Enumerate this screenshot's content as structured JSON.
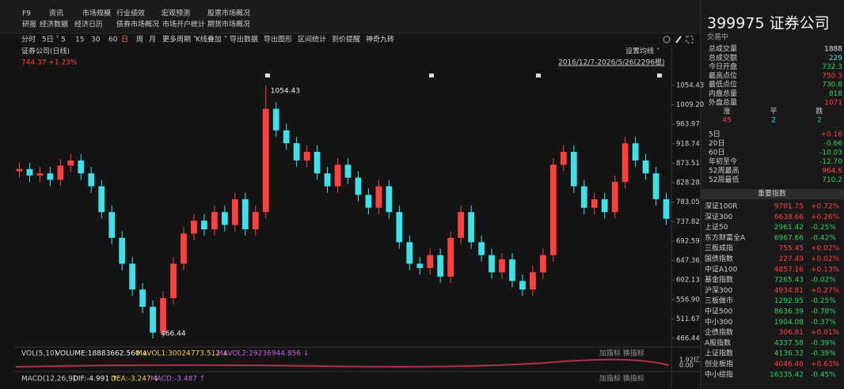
{
  "menu": {
    "row1": [
      "F9",
      "资讯",
      "市场规模",
      "行业绩效",
      "宏观预测",
      "股票市场概况"
    ],
    "row2": [
      "研报",
      "经济数据",
      "经济日历",
      "债券市场概况",
      "市场开户统计",
      "期货市场概况"
    ],
    "toolbar": [
      "分时",
      "5日 ˅",
      "5",
      "15",
      "30",
      "60",
      "日",
      "周",
      "月",
      "更多周期 ˅",
      "K线叠加 ˅",
      "导出数据",
      "导出图形",
      "区间统计",
      "到价提醒",
      "神奇九砖"
    ]
  },
  "chart_data": {
    "type": "candlestick",
    "title": "证券公司(日线)",
    "last": "744.37 +1.23%",
    "ma_button": "设置均线 ˅",
    "range": "2016/12/7-2026/5/26(2296根)",
    "up_color": "#ff4040",
    "down_color": "#40e0e8",
    "open": [
      855,
      860,
      845,
      850,
      835,
      868,
      880,
      850,
      820,
      760,
      700,
      640,
      580,
      540,
      480,
      560,
      640,
      710,
      740,
      720,
      760,
      730,
      790,
      720,
      760,
      1000,
      950,
      920,
      880,
      900,
      850,
      820,
      870,
      840,
      800,
      770,
      820,
      760,
      690,
      640,
      630,
      660,
      610,
      700,
      760,
      690,
      660,
      620,
      650,
      600,
      580,
      620,
      660,
      870,
      900,
      820,
      770,
      790,
      760,
      830,
      920,
      880,
      850,
      790
    ],
    "high": [
      875,
      875,
      865,
      865,
      883,
      895,
      895,
      865,
      835,
      775,
      715,
      655,
      595,
      555,
      575,
      655,
      725,
      755,
      755,
      775,
      775,
      805,
      805,
      775,
      1054.43,
      1015,
      965,
      935,
      915,
      915,
      865,
      885,
      885,
      855,
      815,
      835,
      835,
      775,
      705,
      655,
      675,
      675,
      715,
      775,
      775,
      705,
      675,
      665,
      665,
      615,
      635,
      675,
      885,
      915,
      915,
      835,
      805,
      805,
      845,
      935,
      935,
      895,
      865,
      805
    ],
    "low": [
      840,
      830,
      830,
      820,
      820,
      853,
      835,
      805,
      745,
      685,
      625,
      565,
      525,
      466.44,
      470,
      545,
      625,
      695,
      705,
      705,
      715,
      715,
      705,
      705,
      745,
      935,
      905,
      865,
      865,
      835,
      805,
      805,
      825,
      785,
      755,
      755,
      745,
      675,
      625,
      615,
      615,
      595,
      595,
      685,
      675,
      645,
      605,
      605,
      585,
      565,
      565,
      605,
      645,
      855,
      805,
      755,
      755,
      745,
      745,
      815,
      865,
      835,
      775,
      730
    ],
    "close": [
      860,
      845,
      850,
      835,
      868,
      880,
      850,
      820,
      760,
      700,
      640,
      580,
      540,
      480,
      560,
      640,
      710,
      740,
      720,
      760,
      730,
      790,
      720,
      760,
      1000,
      950,
      920,
      880,
      900,
      850,
      820,
      870,
      840,
      800,
      770,
      820,
      760,
      690,
      640,
      630,
      660,
      610,
      700,
      760,
      690,
      660,
      620,
      650,
      600,
      580,
      620,
      660,
      870,
      900,
      820,
      770,
      790,
      760,
      830,
      920,
      880,
      850,
      790,
      744.37
    ],
    "max_label": 1054.43,
    "min_label": 466.44,
    "ylim": [
      466.44,
      1054.43
    ],
    "yticks": [
      1054.43,
      {
        "value": 1009.2,
        "label": "1009.20"
      },
      963.97,
      918.74,
      873.51,
      828.28,
      783.05,
      737.82,
      692.59,
      647.36,
      602.13,
      {
        "value": 556.9,
        "label": "556.90"
      },
      511.67,
      466.44
    ]
  },
  "volume": {
    "title": "VOL(5,10)",
    "volume": "VOLUME:18883662.560 ↓",
    "mavol1": "MAVOL1:30024773.512 ↓",
    "mavol2": "MAVOL2:29236944.856 ↓",
    "buttons": "加指标 换指标",
    "axis_top": "1.92亿",
    "axis_bottom": "0.00"
  },
  "macd": {
    "title": "MACD(12,26,9)",
    "dif": "DIF:-4.991 ↑",
    "dea": "DEA:-3.247 ↓",
    "macd": "MACD:-3.487 ↑",
    "buttons": "加指标 换指标"
  },
  "quote": {
    "name": "399975 证券公司",
    "status": "交易中",
    "stats": [
      {
        "label": "总成交量",
        "value": "1888",
        "color": "#e0e0e0"
      },
      {
        "label": "总成交额",
        "value": "229",
        "color": "#40e0e8"
      },
      {
        "label": "今日开盘",
        "value": "732.3",
        "color": "#30d060"
      },
      {
        "label": "最高点位",
        "value": "750.3",
        "color": "#ff4040"
      },
      {
        "label": "最低点位",
        "value": "730.8",
        "color": "#30d060"
      },
      {
        "label": "内盘总量",
        "value": "818",
        "color": "#30d060"
      },
      {
        "label": "外盘总量",
        "value": "1071",
        "color": "#ff4040"
      }
    ],
    "breadth": {
      "headers": [
        "涨",
        "平",
        "跌"
      ],
      "values": [
        "45",
        "2",
        "2"
      ],
      "colors": [
        "#ff4040",
        "#40e0e8",
        "#30d060"
      ]
    },
    "returns": [
      {
        "label": "5日",
        "value": "+0.16",
        "color": "#ff4040"
      },
      {
        "label": "20日",
        "value": "-0.66",
        "color": "#30d060"
      },
      {
        "label": "60日",
        "value": "-10.03",
        "color": "#30d060"
      },
      {
        "label": "年初至今",
        "value": "-12.70",
        "color": "#30d060"
      },
      {
        "label": "52周最高",
        "value": "964.6",
        "color": "#ff4040"
      },
      {
        "label": "52周最低",
        "value": "710.2",
        "color": "#30d060"
      }
    ],
    "indices_title": "重要指数",
    "indices": [
      {
        "name": "深证100R",
        "value": "9701.75",
        "change": "+0.72%"
      },
      {
        "name": "深证300",
        "value": "6638.66",
        "change": "+0.26%"
      },
      {
        "name": "上证50",
        "value": "2961.42",
        "change": "-0.25%"
      },
      {
        "name": "东方财富全A",
        "value": "6967.66",
        "change": "-0.42%"
      },
      {
        "name": "三板成指",
        "value": "755.45",
        "change": "+0.02%"
      },
      {
        "name": "国债指数",
        "value": "227.49",
        "change": "+0.02%"
      },
      {
        "name": "中证A100",
        "value": "4857.16",
        "change": "+0.13%"
      },
      {
        "name": "基金指数",
        "value": "7265.43",
        "change": "-0.02%"
      },
      {
        "name": "沪深300",
        "value": "4934.81",
        "change": "+0.27%"
      },
      {
        "name": "三板做市",
        "value": "1292.95",
        "change": "-0.25%"
      },
      {
        "name": "中证500",
        "value": "8636.39",
        "change": "-0.78%"
      },
      {
        "name": "中小300",
        "value": "1904.08",
        "change": "-0.37%"
      },
      {
        "name": "企债指数",
        "value": "306.81",
        "change": "+0.01%"
      },
      {
        "name": "A股指数",
        "value": "4337.58",
        "change": "-0.39%"
      },
      {
        "name": "上证指数",
        "value": "4136.32",
        "change": "-0.39%"
      },
      {
        "name": "创业板指",
        "value": "4046.46",
        "change": "+0.63%"
      },
      {
        "name": "中小综指",
        "value": "16335.42",
        "change": "-0.45%"
      }
    ]
  }
}
